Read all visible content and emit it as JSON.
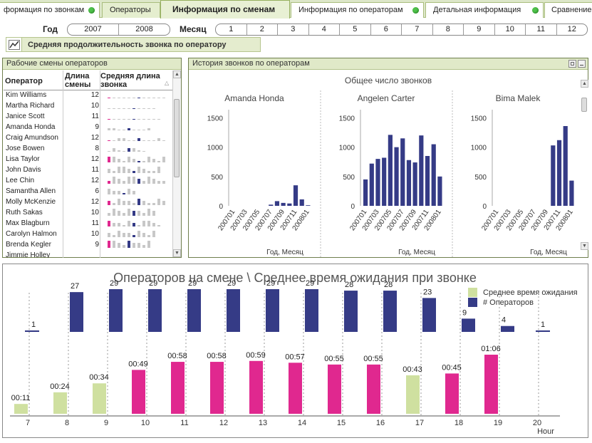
{
  "tabs": [
    {
      "label": "формация по звонкам",
      "dot": true
    },
    {
      "label": "Операторы",
      "dot": false
    },
    {
      "label": "Информация по сменам",
      "dot": false,
      "active": true
    },
    {
      "label": "Информация по операторам",
      "dot": true
    },
    {
      "label": "Детальная информация",
      "dot": true
    },
    {
      "label": "Сравнение",
      "dot": false
    }
  ],
  "filters": {
    "year_label": "Год",
    "years": [
      "2007",
      "2008"
    ],
    "month_label": "Месяц",
    "months": [
      "1",
      "2",
      "3",
      "4",
      "5",
      "6",
      "7",
      "8",
      "9",
      "10",
      "11",
      "12"
    ]
  },
  "chart_button": {
    "label": "Средняя продолжительность звонка по оператору",
    "icon": "line-chart-icon"
  },
  "shifts_panel": {
    "title": "Рабочие смены операторов",
    "headers": {
      "operator": "Оператор",
      "shift_length": "Длина смены",
      "avg_length": "Средняя длина звонка"
    },
    "rows": [
      {
        "name": "Kim Williams",
        "shift": "12"
      },
      {
        "name": "Martha Richard",
        "shift": "10"
      },
      {
        "name": "Janice Scott",
        "shift": "11"
      },
      {
        "name": "Amanda Honda",
        "shift": "9"
      },
      {
        "name": "Craig Amundson",
        "shift": "12"
      },
      {
        "name": "Jose Bowen",
        "shift": "8"
      },
      {
        "name": "Lisa Taylor",
        "shift": "12"
      },
      {
        "name": "John Davis",
        "shift": "11"
      },
      {
        "name": "Lee Chin",
        "shift": "12"
      },
      {
        "name": "Samantha Allen",
        "shift": "6"
      },
      {
        "name": "Molly McKenzie",
        "shift": "12"
      },
      {
        "name": "Ruth Sakas",
        "shift": "10"
      },
      {
        "name": "Max Blagburn",
        "shift": "11"
      },
      {
        "name": "Carolyn Halmon",
        "shift": "10"
      },
      {
        "name": "Brenda Kegler",
        "shift": "9"
      },
      {
        "name": "Jimmie Holley",
        "shift": ""
      }
    ]
  },
  "history_panel": {
    "title": "История звонков по операторам",
    "chart_title": "Общее число звонков",
    "xlabel": "Год, Месяц",
    "yticks": [
      "0",
      "500",
      "1000",
      "1500"
    ],
    "xticks": [
      "200701",
      "200703",
      "200705",
      "200707",
      "200709",
      "200711",
      "200801"
    ]
  },
  "colors": {
    "navy": "#353b86",
    "pink": "#e0288f",
    "lightgreen": "#cfe0a0",
    "accent": "#4fc24b"
  },
  "chart_data": [
    {
      "type": "bar",
      "title": "Общее число звонков",
      "series_title": "Amanda Honda",
      "xlabel": "Год, Месяц",
      "ylim": [
        0,
        1700
      ],
      "categories": [
        "200701",
        "200702",
        "200703",
        "200704",
        "200705",
        "200706",
        "200707",
        "200708",
        "200709",
        "200710",
        "200711",
        "200712",
        "200801"
      ],
      "values": [
        0,
        0,
        0,
        0,
        0,
        0,
        20,
        80,
        50,
        40,
        350,
        110,
        10
      ]
    },
    {
      "type": "bar",
      "title": "Общее число звонков",
      "series_title": "Angelen Carter",
      "xlabel": "Год, Месяц",
      "ylim": [
        0,
        1700
      ],
      "categories": [
        "200701",
        "200702",
        "200703",
        "200704",
        "200705",
        "200706",
        "200707",
        "200708",
        "200709",
        "200710",
        "200711",
        "200712",
        "200801"
      ],
      "values": [
        450,
        720,
        800,
        820,
        1210,
        1000,
        1150,
        780,
        740,
        1200,
        850,
        1050,
        500
      ]
    },
    {
      "type": "bar",
      "title": "Общее число звонков",
      "series_title": "Bima Malek",
      "xlabel": "Год, Месяц",
      "ylim": [
        0,
        1700
      ],
      "categories": [
        "200701",
        "200702",
        "200703",
        "200704",
        "200705",
        "200706",
        "200707",
        "200708",
        "200709",
        "200710",
        "200711",
        "200712",
        "200801"
      ],
      "values": [
        0,
        0,
        0,
        0,
        0,
        0,
        0,
        0,
        0,
        1030,
        1120,
        1360,
        430
      ]
    },
    {
      "type": "bar",
      "title": "Операторов на смене \\ Среднее время ожидания при звонке",
      "xlabel": "Hour",
      "categories": [
        "7",
        "8",
        "9",
        "10",
        "11",
        "12",
        "13",
        "14",
        "15",
        "16",
        "17",
        "18",
        "19",
        "20"
      ],
      "series": [
        {
          "name": "Среднее время ожидания",
          "values": [
            11,
            24,
            34,
            49,
            58,
            58,
            59,
            57,
            55,
            55,
            43,
            45,
            66,
            null
          ],
          "labels": [
            "00:11",
            "00:24",
            "00:34",
            "00:49",
            "00:58",
            "00:58",
            "00:59",
            "00:57",
            "00:55",
            "00:55",
            "00:43",
            "00:45",
            "01:06",
            ""
          ],
          "colors": [
            "lightgreen",
            "lightgreen",
            "lightgreen",
            "pink",
            "pink",
            "pink",
            "pink",
            "pink",
            "pink",
            "pink",
            "lightgreen",
            "pink",
            "pink",
            ""
          ]
        },
        {
          "name": "# Операторов",
          "values": [
            1,
            27,
            29,
            29,
            29,
            29,
            29,
            29,
            28,
            28,
            23,
            9,
            4,
            1
          ]
        }
      ]
    }
  ]
}
